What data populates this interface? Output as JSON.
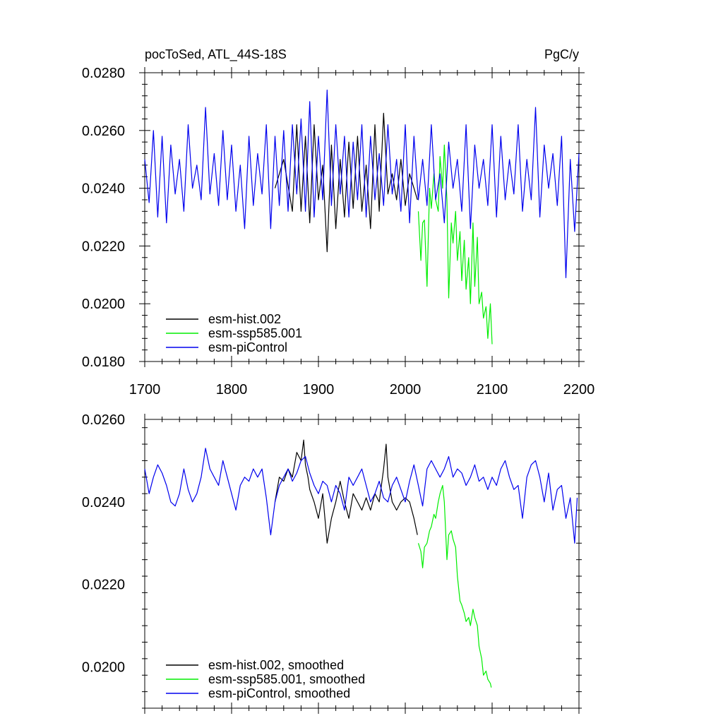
{
  "colors": {
    "esm-hist.002": "#000000",
    "esm-ssp585.001": "#00ee00",
    "esm-piControl": "#0000ee"
  },
  "chart_data": [
    {
      "type": "line",
      "title_left": "pocToSed, ATL_44S-18S",
      "title_right": "PgC/y",
      "xlim": [
        1700,
        2200
      ],
      "ylim": [
        0.018,
        0.028
      ],
      "x_ticks": [
        1700,
        1800,
        1900,
        2000,
        2100,
        2200
      ],
      "x_tick_labels": [
        "1700",
        "1800",
        "1900",
        "2000",
        "2100",
        "2200"
      ],
      "y_ticks": [
        0.018,
        0.02,
        0.022,
        0.024,
        0.026,
        0.028
      ],
      "y_tick_labels": [
        "0.0180",
        "0.0200",
        "0.0220",
        "0.0240",
        "0.0260",
        "0.0280"
      ],
      "legend_position": "bottom-left",
      "series": [
        {
          "name": "esm-hist.002",
          "x": [
            1850,
            1860,
            1870,
            1875,
            1880,
            1885,
            1890,
            1895,
            1900,
            1905,
            1910,
            1915,
            1920,
            1925,
            1930,
            1935,
            1940,
            1945,
            1950,
            1955,
            1960,
            1965,
            1970,
            1975,
            1980,
            1985,
            1990,
            1995,
            2000,
            2005,
            2010,
            2014
          ],
          "values": [
            0.024,
            0.025,
            0.0232,
            0.0262,
            0.0232,
            0.0258,
            0.0228,
            0.0262,
            0.0236,
            0.0248,
            0.0218,
            0.0255,
            0.0226,
            0.025,
            0.023,
            0.0256,
            0.0233,
            0.0258,
            0.0232,
            0.0248,
            0.0226,
            0.0262,
            0.0232,
            0.0266,
            0.0238,
            0.0245,
            0.0236,
            0.025,
            0.0234,
            0.0245,
            0.024,
            0.0236
          ]
        },
        {
          "name": "esm-ssp585.001",
          "x": [
            2015,
            2018,
            2020,
            2022,
            2025,
            2028,
            2030,
            2033,
            2035,
            2038,
            2040,
            2043,
            2045,
            2048,
            2050,
            2053,
            2055,
            2058,
            2060,
            2063,
            2065,
            2068,
            2070,
            2073,
            2075,
            2078,
            2080,
            2083,
            2085,
            2088,
            2090,
            2093,
            2095,
            2098,
            2100
          ],
          "values": [
            0.0232,
            0.0215,
            0.0228,
            0.0229,
            0.0206,
            0.024,
            0.0233,
            0.0245,
            0.0236,
            0.0232,
            0.0251,
            0.024,
            0.0255,
            0.0236,
            0.0202,
            0.0228,
            0.0221,
            0.0232,
            0.0215,
            0.0225,
            0.0208,
            0.0222,
            0.0205,
            0.0216,
            0.02,
            0.0228,
            0.0206,
            0.0223,
            0.02,
            0.0204,
            0.0195,
            0.0199,
            0.0188,
            0.02,
            0.0186
          ]
        },
        {
          "name": "esm-piControl",
          "x": [
            1700,
            1705,
            1710,
            1715,
            1720,
            1725,
            1730,
            1735,
            1740,
            1745,
            1750,
            1755,
            1760,
            1765,
            1770,
            1775,
            1780,
            1785,
            1790,
            1795,
            1800,
            1805,
            1810,
            1815,
            1820,
            1825,
            1830,
            1835,
            1840,
            1845,
            1850,
            1855,
            1860,
            1865,
            1870,
            1875,
            1880,
            1885,
            1890,
            1895,
            1900,
            1905,
            1910,
            1915,
            1920,
            1925,
            1930,
            1935,
            1940,
            1945,
            1950,
            1955,
            1960,
            1965,
            1970,
            1975,
            1980,
            1985,
            1990,
            1995,
            2000,
            2005,
            2010,
            2015,
            2020,
            2025,
            2030,
            2035,
            2040,
            2045,
            2050,
            2055,
            2060,
            2065,
            2070,
            2075,
            2080,
            2085,
            2090,
            2095,
            2100,
            2105,
            2110,
            2115,
            2120,
            2125,
            2130,
            2135,
            2140,
            2145,
            2150,
            2155,
            2160,
            2165,
            2170,
            2175,
            2180,
            2185,
            2190,
            2195,
            2200
          ],
          "values": [
            0.025,
            0.0235,
            0.026,
            0.023,
            0.0258,
            0.0228,
            0.0255,
            0.0238,
            0.025,
            0.0232,
            0.0262,
            0.024,
            0.0248,
            0.0236,
            0.0268,
            0.0238,
            0.0252,
            0.0234,
            0.026,
            0.0236,
            0.0255,
            0.0232,
            0.0248,
            0.0226,
            0.0258,
            0.0234,
            0.0252,
            0.0238,
            0.0262,
            0.0226,
            0.0258,
            0.0234,
            0.026,
            0.0232,
            0.0262,
            0.0238,
            0.0264,
            0.0232,
            0.027,
            0.023,
            0.0258,
            0.0236,
            0.0274,
            0.0234,
            0.0262,
            0.0238,
            0.0258,
            0.023,
            0.0256,
            0.0236,
            0.0262,
            0.023,
            0.0258,
            0.0236,
            0.0252,
            0.0234,
            0.0262,
            0.0238,
            0.025,
            0.0232,
            0.0262,
            0.0228,
            0.0258,
            0.0236,
            0.025,
            0.0234,
            0.0262,
            0.0236,
            0.0245,
            0.0228,
            0.0256,
            0.024,
            0.025,
            0.0232,
            0.0262,
            0.0226,
            0.0255,
            0.024,
            0.025,
            0.0234,
            0.0262,
            0.023,
            0.0258,
            0.0236,
            0.025,
            0.0238,
            0.0262,
            0.0232,
            0.025,
            0.0236,
            0.0268,
            0.023,
            0.0255,
            0.024,
            0.0252,
            0.0234,
            0.0258,
            0.0209,
            0.025,
            0.0225,
            0.0252
          ]
        }
      ]
    },
    {
      "type": "line",
      "xlim": [
        1700,
        2200
      ],
      "ylim": [
        0.019,
        0.026
      ],
      "x_ticks": [
        1700,
        1800,
        1900,
        2000,
        2100,
        2200
      ],
      "y_ticks": [
        0.02,
        0.022,
        0.024,
        0.026
      ],
      "y_tick_labels": [
        "0.0200",
        "0.0220",
        "0.0240",
        "0.0260"
      ],
      "legend_position": "bottom-left",
      "series": [
        {
          "name": "esm-hist.002, smoothed",
          "x": [
            1850,
            1855,
            1860,
            1865,
            1870,
            1875,
            1880,
            1883,
            1885,
            1888,
            1890,
            1895,
            1900,
            1905,
            1910,
            1915,
            1920,
            1925,
            1930,
            1935,
            1940,
            1945,
            1950,
            1955,
            1960,
            1965,
            1970,
            1975,
            1978,
            1980,
            1985,
            1990,
            1995,
            2000,
            2005,
            2010,
            2014
          ],
          "values": [
            0.024,
            0.0246,
            0.0245,
            0.0248,
            0.0246,
            0.0252,
            0.025,
            0.0255,
            0.0249,
            0.0246,
            0.0243,
            0.024,
            0.0236,
            0.0242,
            0.023,
            0.0236,
            0.024,
            0.0245,
            0.024,
            0.0236,
            0.0242,
            0.024,
            0.0238,
            0.0241,
            0.0238,
            0.0242,
            0.024,
            0.0248,
            0.0254,
            0.0246,
            0.024,
            0.0238,
            0.024,
            0.0241,
            0.024,
            0.0236,
            0.0232
          ]
        },
        {
          "name": "esm-ssp585.001, smoothed",
          "x": [
            2015,
            2018,
            2020,
            2022,
            2025,
            2028,
            2030,
            2033,
            2035,
            2038,
            2040,
            2043,
            2045,
            2048,
            2050,
            2053,
            2055,
            2058,
            2060,
            2063,
            2065,
            2068,
            2070,
            2073,
            2075,
            2078,
            2080,
            2083,
            2085,
            2088,
            2090,
            2093,
            2095,
            2098,
            2099
          ],
          "values": [
            0.023,
            0.0228,
            0.0224,
            0.0229,
            0.023,
            0.0233,
            0.0234,
            0.0237,
            0.0236,
            0.024,
            0.0242,
            0.0244,
            0.024,
            0.0226,
            0.0232,
            0.0233,
            0.0231,
            0.0229,
            0.0222,
            0.0216,
            0.0215,
            0.0213,
            0.0211,
            0.0212,
            0.021,
            0.0214,
            0.0212,
            0.021,
            0.0205,
            0.0202,
            0.0198,
            0.0199,
            0.0197,
            0.0196,
            0.0195
          ]
        },
        {
          "name": "esm-piControl, smoothed",
          "x": [
            1700,
            1705,
            1710,
            1715,
            1720,
            1725,
            1730,
            1735,
            1740,
            1745,
            1750,
            1755,
            1760,
            1765,
            1770,
            1775,
            1780,
            1785,
            1790,
            1795,
            1800,
            1805,
            1810,
            1815,
            1820,
            1825,
            1830,
            1835,
            1840,
            1845,
            1850,
            1855,
            1860,
            1865,
            1870,
            1875,
            1880,
            1885,
            1890,
            1895,
            1900,
            1905,
            1910,
            1915,
            1920,
            1925,
            1930,
            1935,
            1940,
            1945,
            1950,
            1955,
            1960,
            1965,
            1970,
            1975,
            1980,
            1985,
            1990,
            1995,
            2000,
            2005,
            2010,
            2015,
            2020,
            2025,
            2030,
            2035,
            2040,
            2045,
            2050,
            2055,
            2060,
            2065,
            2070,
            2075,
            2080,
            2085,
            2090,
            2095,
            2100,
            2105,
            2110,
            2115,
            2120,
            2125,
            2130,
            2135,
            2140,
            2145,
            2150,
            2155,
            2160,
            2165,
            2170,
            2175,
            2180,
            2185,
            2190,
            2195,
            2198
          ],
          "values": [
            0.0248,
            0.0242,
            0.0246,
            0.0249,
            0.0247,
            0.0244,
            0.024,
            0.0239,
            0.0242,
            0.0248,
            0.0243,
            0.024,
            0.0242,
            0.0246,
            0.0253,
            0.0248,
            0.0246,
            0.0244,
            0.025,
            0.0246,
            0.0242,
            0.0238,
            0.0244,
            0.0246,
            0.0245,
            0.0248,
            0.0246,
            0.0248,
            0.0241,
            0.0232,
            0.024,
            0.0244,
            0.0246,
            0.0248,
            0.0245,
            0.0247,
            0.025,
            0.0251,
            0.0247,
            0.0244,
            0.0242,
            0.0245,
            0.0244,
            0.024,
            0.0244,
            0.0242,
            0.0238,
            0.0246,
            0.0244,
            0.0246,
            0.0248,
            0.0244,
            0.024,
            0.0242,
            0.0245,
            0.0241,
            0.024,
            0.0244,
            0.0246,
            0.0243,
            0.024,
            0.0245,
            0.0249,
            0.0244,
            0.0239,
            0.0248,
            0.025,
            0.0248,
            0.0246,
            0.0248,
            0.0251,
            0.0246,
            0.0248,
            0.0247,
            0.0244,
            0.0246,
            0.0249,
            0.0245,
            0.0246,
            0.0243,
            0.0246,
            0.0244,
            0.0248,
            0.025,
            0.0246,
            0.0243,
            0.0244,
            0.0236,
            0.0246,
            0.0249,
            0.025,
            0.0246,
            0.024,
            0.0247,
            0.0238,
            0.0243,
            0.0244,
            0.0236,
            0.0241,
            0.023,
            0.0241
          ]
        }
      ]
    }
  ]
}
